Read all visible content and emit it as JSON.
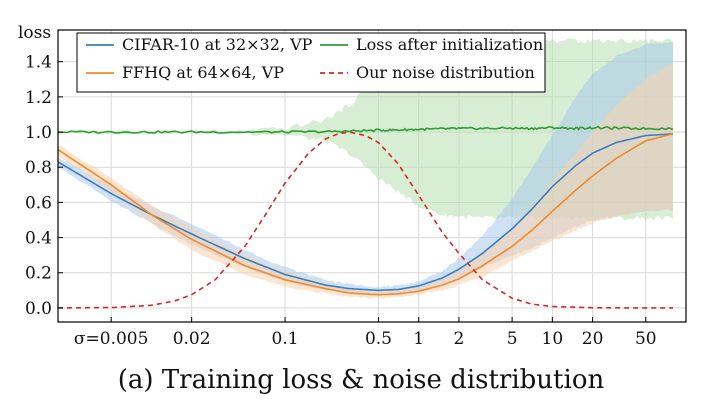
{
  "chart_data": {
    "type": "line",
    "caption": "(a) Training loss & noise distribution",
    "ylabel": "loss",
    "xscale": "log",
    "xlim": [
      0.002,
      100
    ],
    "ylim": [
      -0.08,
      1.58
    ],
    "grid": true,
    "legend_position": "top",
    "x_ticks": [
      {
        "value": 0.005,
        "label": "σ=0.005"
      },
      {
        "value": 0.02,
        "label": "0.02"
      },
      {
        "value": 0.1,
        "label": "0.1"
      },
      {
        "value": 0.5,
        "label": "0.5"
      },
      {
        "value": 1,
        "label": "1"
      },
      {
        "value": 2,
        "label": "2"
      },
      {
        "value": 5,
        "label": "5"
      },
      {
        "value": 10,
        "label": "10"
      },
      {
        "value": 20,
        "label": "20"
      },
      {
        "value": 50,
        "label": "50"
      }
    ],
    "y_ticks": [
      {
        "value": 0.0,
        "label": "0.0"
      },
      {
        "value": 0.2,
        "label": "0.2"
      },
      {
        "value": 0.4,
        "label": "0.4"
      },
      {
        "value": 0.6,
        "label": "0.6"
      },
      {
        "value": 0.8,
        "label": "0.8"
      },
      {
        "value": 1.0,
        "label": "1.0"
      },
      {
        "value": 1.2,
        "label": "1.2"
      },
      {
        "value": 1.4,
        "label": "1.4"
      }
    ],
    "series": [
      {
        "name": "CIFAR-10 at 32×32, VP",
        "color": "#3a7fbf",
        "band_color": "#a9c8ea",
        "x": [
          0.002,
          0.005,
          0.01,
          0.02,
          0.05,
          0.1,
          0.2,
          0.3,
          0.5,
          0.7,
          1,
          1.5,
          2,
          3,
          5,
          7,
          10,
          15,
          20,
          30,
          50,
          80
        ],
        "y": [
          0.83,
          0.65,
          0.53,
          0.42,
          0.28,
          0.19,
          0.13,
          0.11,
          0.1,
          0.105,
          0.125,
          0.17,
          0.22,
          0.31,
          0.45,
          0.56,
          0.69,
          0.81,
          0.88,
          0.94,
          0.98,
          0.99
        ],
        "y_lower": [
          0.8,
          0.61,
          0.48,
          0.36,
          0.23,
          0.15,
          0.1,
          0.085,
          0.08,
          0.085,
          0.1,
          0.135,
          0.17,
          0.23,
          0.3,
          0.34,
          0.4,
          0.46,
          0.5,
          0.52,
          0.55,
          0.56
        ],
        "y_upper": [
          0.86,
          0.69,
          0.58,
          0.48,
          0.33,
          0.23,
          0.16,
          0.135,
          0.12,
          0.125,
          0.15,
          0.21,
          0.28,
          0.41,
          0.62,
          0.79,
          0.98,
          1.2,
          1.33,
          1.43,
          1.5,
          1.51
        ]
      },
      {
        "name": "FFHQ at 64×64, VP",
        "color": "#f08a2c",
        "band_color": "#f8d2ad",
        "x": [
          0.002,
          0.005,
          0.01,
          0.02,
          0.05,
          0.1,
          0.2,
          0.3,
          0.5,
          0.7,
          1,
          1.5,
          2,
          3,
          5,
          7,
          10,
          15,
          20,
          30,
          50,
          80
        ],
        "y": [
          0.9,
          0.7,
          0.53,
          0.39,
          0.24,
          0.16,
          0.11,
          0.085,
          0.075,
          0.08,
          0.095,
          0.13,
          0.165,
          0.24,
          0.35,
          0.44,
          0.55,
          0.67,
          0.75,
          0.85,
          0.95,
          0.99
        ],
        "y_lower": [
          0.87,
          0.66,
          0.48,
          0.33,
          0.19,
          0.12,
          0.08,
          0.06,
          0.055,
          0.06,
          0.075,
          0.1,
          0.13,
          0.18,
          0.27,
          0.32,
          0.38,
          0.44,
          0.48,
          0.52,
          0.55,
          0.56
        ],
        "y_upper": [
          0.93,
          0.74,
          0.58,
          0.45,
          0.3,
          0.2,
          0.14,
          0.11,
          0.095,
          0.1,
          0.115,
          0.16,
          0.21,
          0.31,
          0.45,
          0.57,
          0.72,
          0.88,
          1.0,
          1.15,
          1.3,
          1.4
        ]
      },
      {
        "name": "Loss after initialization",
        "color": "#2e9e2e",
        "band_color": "#b6deb0",
        "x": [
          0.002,
          0.005,
          0.01,
          0.02,
          0.05,
          0.1,
          0.2,
          0.3,
          0.5,
          0.7,
          1,
          1.5,
          2,
          3,
          5,
          7,
          10,
          15,
          20,
          30,
          50,
          80
        ],
        "y": [
          1.0,
          1.0,
          1.0,
          1.0,
          1.0,
          1.0,
          1.002,
          1.005,
          1.01,
          1.012,
          1.015,
          1.018,
          1.02,
          1.02,
          1.022,
          1.02,
          1.025,
          1.02,
          1.025,
          1.022,
          1.02,
          1.02
        ],
        "y_lower": [
          1.0,
          1.0,
          1.0,
          1.0,
          0.995,
          0.985,
          0.95,
          0.88,
          0.74,
          0.66,
          0.58,
          0.53,
          0.52,
          0.51,
          0.51,
          0.51,
          0.51,
          0.51,
          0.51,
          0.51,
          0.51,
          0.51
        ],
        "y_upper": [
          1.0,
          1.0,
          1.0,
          1.0,
          1.005,
          1.02,
          1.07,
          1.15,
          1.32,
          1.42,
          1.48,
          1.51,
          1.52,
          1.52,
          1.52,
          1.52,
          1.52,
          1.52,
          1.52,
          1.52,
          1.52,
          1.52
        ]
      },
      {
        "name": "Our noise distribution",
        "color": "#d62728",
        "dashed": true,
        "x": [
          0.002,
          0.005,
          0.01,
          0.015,
          0.02,
          0.03,
          0.05,
          0.07,
          0.1,
          0.15,
          0.2,
          0.25,
          0.3,
          0.4,
          0.5,
          0.7,
          1,
          1.5,
          2,
          3,
          5,
          7,
          10,
          20,
          50,
          80
        ],
        "y": [
          0.0,
          0.002,
          0.015,
          0.04,
          0.075,
          0.16,
          0.35,
          0.52,
          0.71,
          0.88,
          0.96,
          0.99,
          1.0,
          0.98,
          0.94,
          0.82,
          0.64,
          0.43,
          0.31,
          0.16,
          0.055,
          0.022,
          0.008,
          0.001,
          0.0,
          0.0
        ]
      }
    ]
  }
}
